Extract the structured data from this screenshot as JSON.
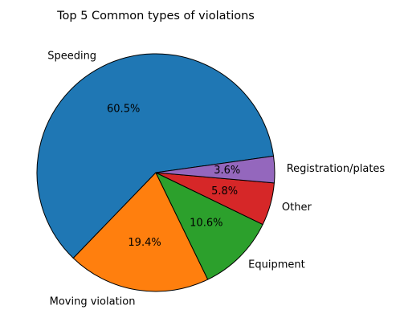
{
  "chart_data": {
    "type": "pie",
    "title": "Top 5 Common types of violations",
    "slices": [
      {
        "label": "Speeding",
        "value": 60.5,
        "pct_label": "60.5%",
        "color": "#1f77b4"
      },
      {
        "label": "Moving violation",
        "value": 19.4,
        "pct_label": "19.4%",
        "color": "#ff7f0e"
      },
      {
        "label": "Equipment",
        "value": 10.6,
        "pct_label": "10.6%",
        "color": "#2ca02c"
      },
      {
        "label": "Other",
        "value": 5.8,
        "pct_label": "5.8%",
        "color": "#d62728"
      },
      {
        "label": "Registration/plates",
        "value": 3.6,
        "pct_label": "3.6%",
        "color": "#9467bd"
      }
    ],
    "start_angle_deg": 8,
    "direction": "counterclockwise",
    "legend": "none"
  }
}
